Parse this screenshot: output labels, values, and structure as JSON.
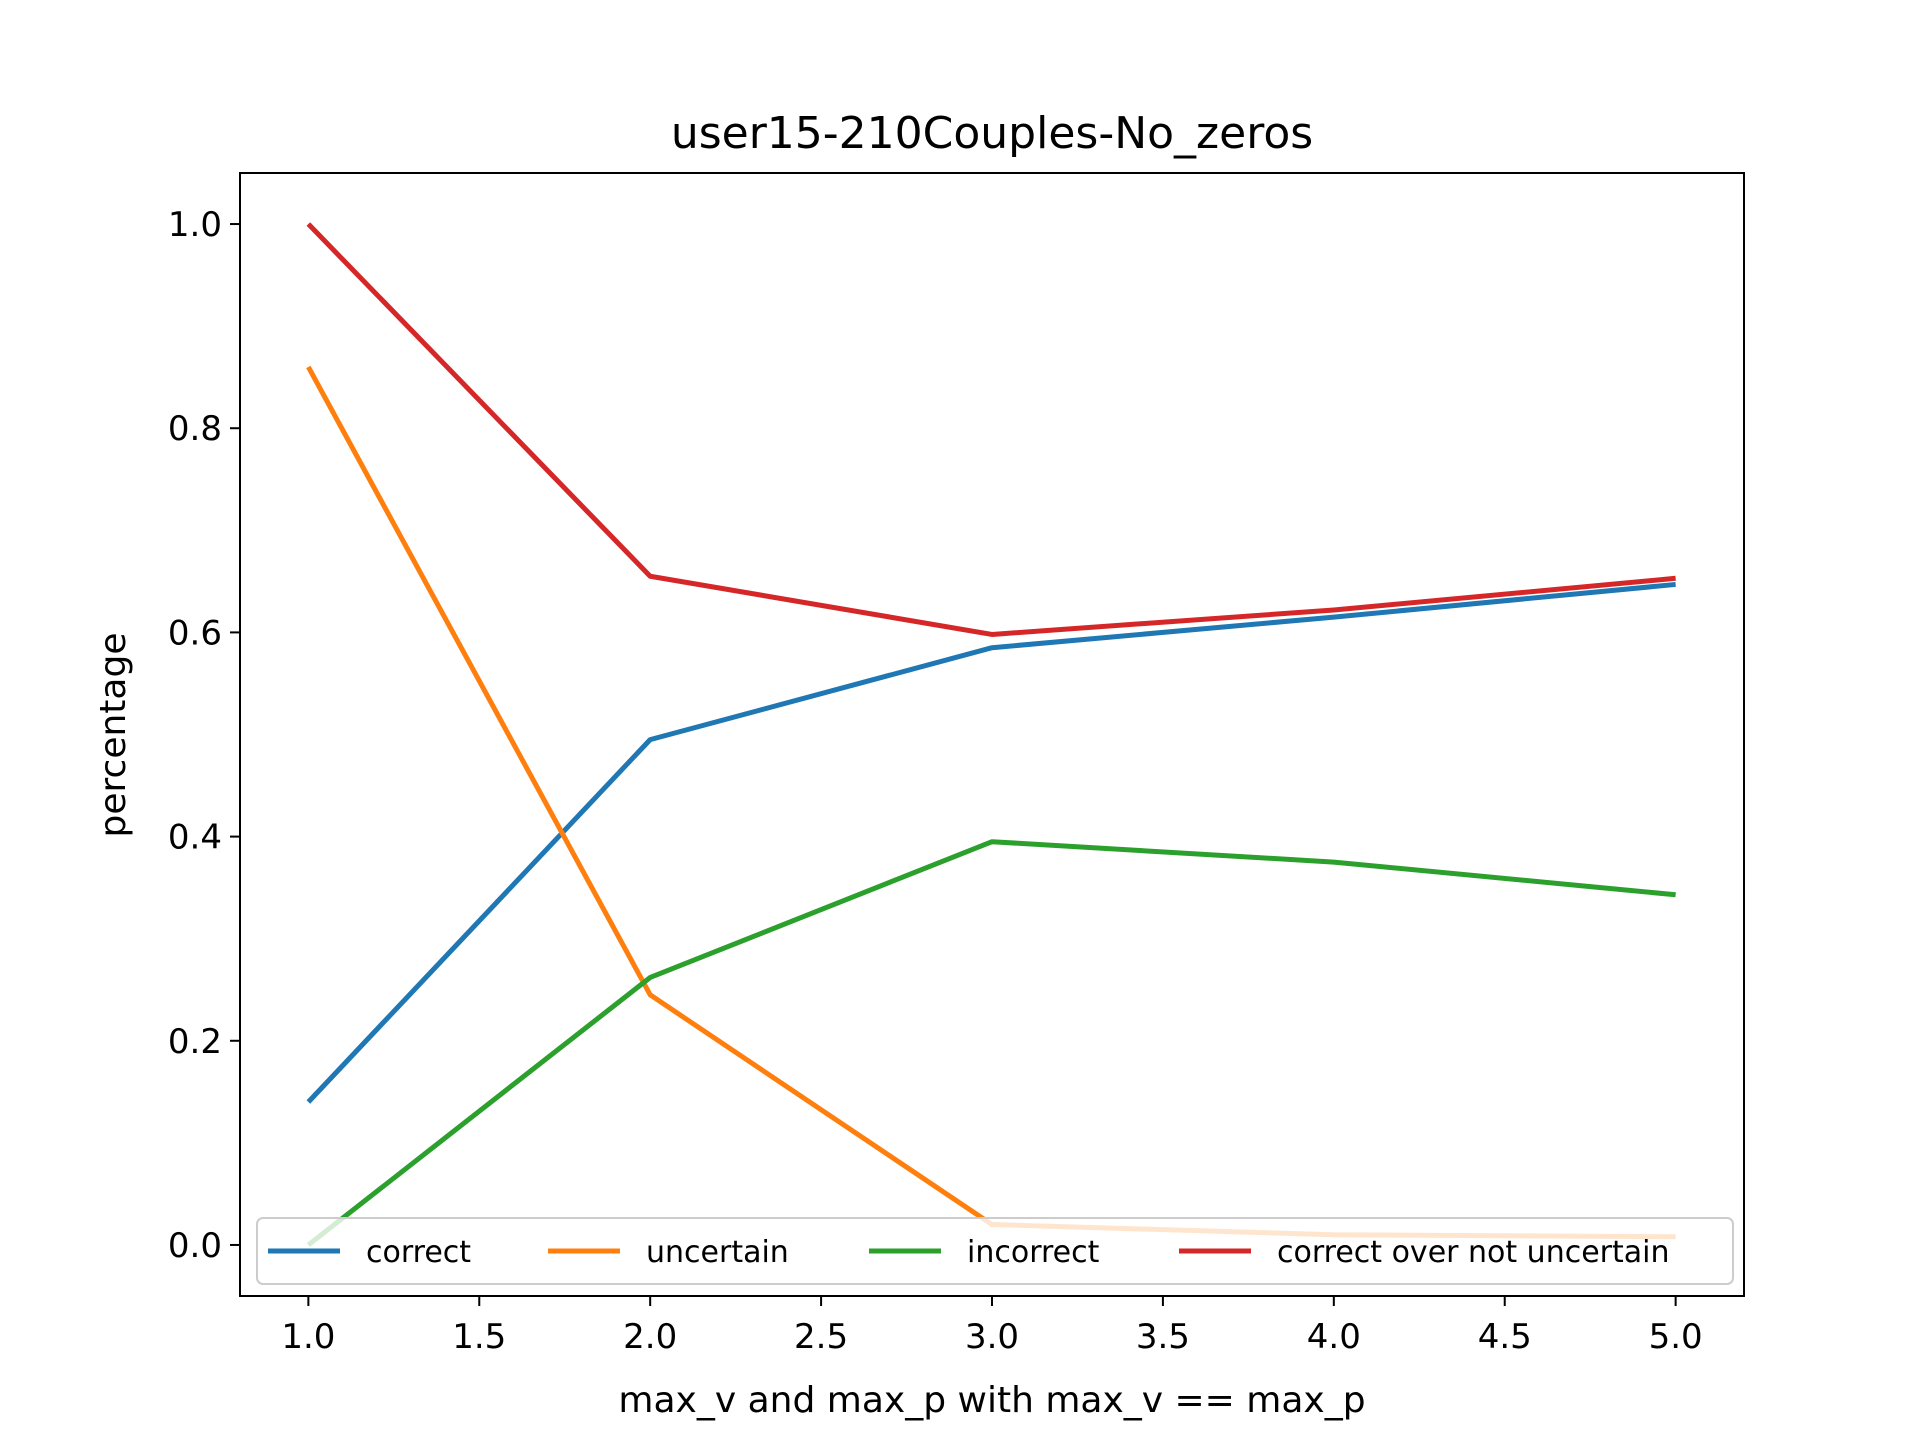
{
  "chart_data": {
    "type": "line",
    "title": "user15-210Couples-No_zeros",
    "xlabel": "max_v and max_p with max_v == max_p",
    "ylabel": "percentage",
    "x": [
      1.0,
      2.0,
      3.0,
      4.0,
      5.0
    ],
    "xlim": [
      0.8,
      5.2
    ],
    "ylim": [
      -0.05,
      1.05
    ],
    "x_ticks": [
      1.0,
      1.5,
      2.0,
      2.5,
      3.0,
      3.5,
      4.0,
      4.5,
      5.0
    ],
    "y_ticks": [
      0.0,
      0.2,
      0.4,
      0.6,
      0.8,
      1.0
    ],
    "x_tick_labels": [
      "1.0",
      "1.5",
      "2.0",
      "2.5",
      "3.0",
      "3.5",
      "4.0",
      "4.5",
      "5.0"
    ],
    "y_tick_labels": [
      "0.0",
      "0.2",
      "0.4",
      "0.6",
      "0.8",
      "1.0"
    ],
    "grid": false,
    "legend_placement": "lower-center",
    "series": [
      {
        "name": "correct",
        "color": "#1f77b4",
        "values": [
          0.14,
          0.495,
          0.585,
          0.615,
          0.647
        ]
      },
      {
        "name": "uncertain",
        "color": "#ff7f0e",
        "values": [
          0.86,
          0.245,
          0.02,
          0.01,
          0.008
        ]
      },
      {
        "name": "incorrect",
        "color": "#2ca02c",
        "values": [
          0.0,
          0.262,
          0.395,
          0.375,
          0.343
        ]
      },
      {
        "name": "correct over not uncertain",
        "color": "#d62728",
        "values": [
          1.0,
          0.655,
          0.598,
          0.622,
          0.653
        ]
      }
    ]
  }
}
